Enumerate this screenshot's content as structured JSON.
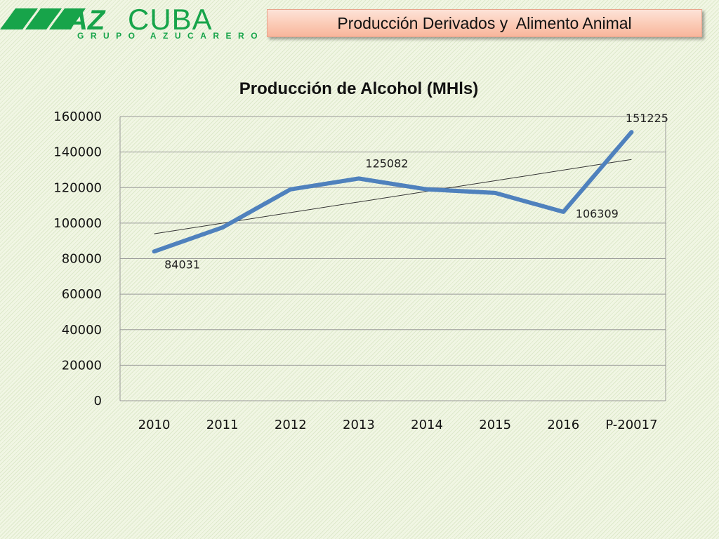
{
  "header": {
    "title": "Producción Derivados y  Alimento Animal",
    "logo": {
      "wordmark_az": "AZ",
      "wordmark_cuba": "CUBA",
      "tagline": "GRUPO AZUCARERO",
      "color": "#17a44a"
    }
  },
  "chart_data": {
    "type": "line",
    "title": "Producción de Alcohol (MHls)",
    "categories": [
      "2010",
      "2011",
      "2012",
      "2013",
      "2014",
      "2015",
      "2016",
      "P-20017"
    ],
    "series": [
      {
        "values": [
          84031,
          97500,
          119000,
          125082,
          119000,
          117000,
          106309,
          151225
        ],
        "color": "#4f81bd"
      }
    ],
    "data_labels": [
      {
        "index": 0,
        "text": "84031"
      },
      {
        "index": 3,
        "text": "125082"
      },
      {
        "index": 6,
        "text": "106309"
      },
      {
        "index": 7,
        "text": "151225"
      }
    ],
    "trendline": {
      "type": "linear",
      "color": "#333333"
    },
    "ylim": [
      0,
      160000
    ],
    "yticks": [
      0,
      20000,
      40000,
      60000,
      80000,
      100000,
      120000,
      140000,
      160000
    ],
    "grid": true,
    "legend": "none"
  }
}
